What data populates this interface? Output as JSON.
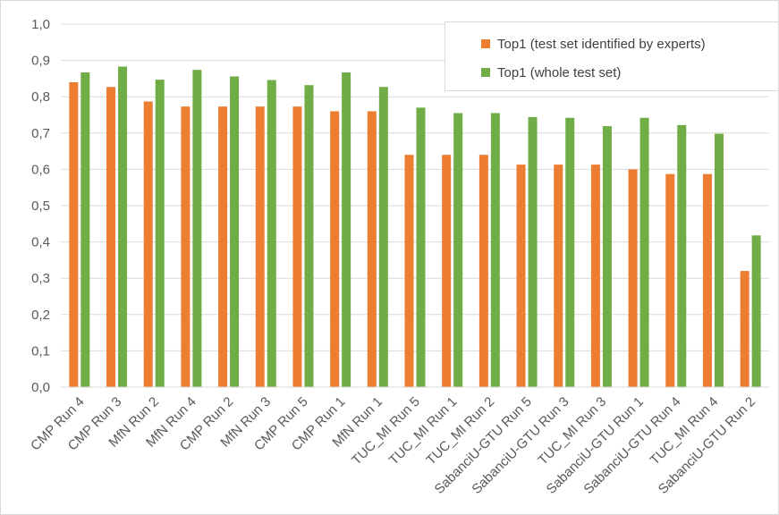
{
  "chart_data": {
    "type": "bar",
    "categories": [
      "CMP Run 4",
      "CMP Run 3",
      "MfN Run 2",
      "MfN Run 4",
      "CMP Run 2",
      "MfN Run 3",
      "CMP Run 5",
      "CMP Run 1",
      "MfN Run 1",
      "TUC_MI Run 5",
      "TUC_MI Run 1",
      "TUC_MI Run 2",
      "SabanciU-GTU Run 5",
      "SabanciU-GTU Run 3",
      "TUC_MI Run 3",
      "SabanciU-GTU Run 1",
      "SabanciU-GTU Run 4",
      "TUC_MI Run 4",
      "SabanciU-GTU Run 2"
    ],
    "series": [
      {
        "name": "Top1 (test set identified by experts)",
        "color": "#ED7D31",
        "values": [
          0.84,
          0.827,
          0.787,
          0.773,
          0.773,
          0.773,
          0.773,
          0.76,
          0.76,
          0.64,
          0.64,
          0.64,
          0.613,
          0.613,
          0.613,
          0.6,
          0.587,
          0.587,
          0.32
        ]
      },
      {
        "name": "Top1 (whole test set)",
        "color": "#70AD47",
        "values": [
          0.867,
          0.883,
          0.847,
          0.874,
          0.856,
          0.846,
          0.832,
          0.867,
          0.827,
          0.77,
          0.755,
          0.755,
          0.744,
          0.742,
          0.719,
          0.742,
          0.722,
          0.698,
          0.418
        ]
      }
    ],
    "ylim": [
      0,
      1.0
    ],
    "yticks": [
      "0,0",
      "0,1",
      "0,2",
      "0,3",
      "0,4",
      "0,5",
      "0,6",
      "0,7",
      "0,8",
      "0,9",
      "1,0"
    ],
    "grid": true,
    "legend_position": "top-right",
    "title": "",
    "xlabel": "",
    "ylabel": ""
  }
}
